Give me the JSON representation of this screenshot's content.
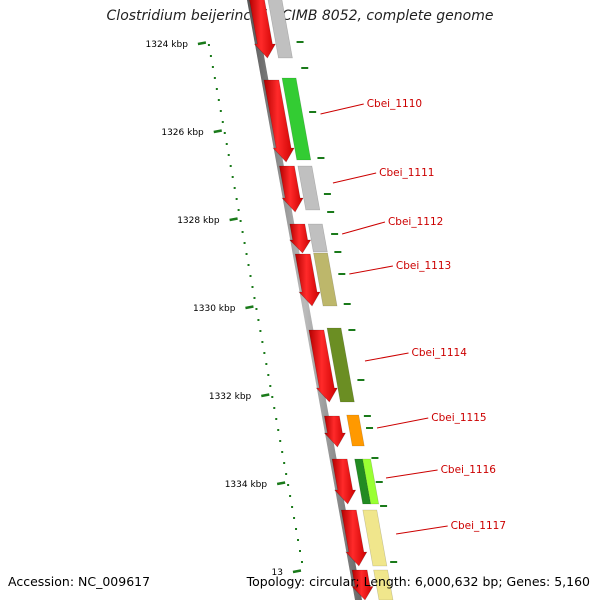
{
  "title": "Clostridium beijerinckii NCIMB 8052, complete genome",
  "footer": {
    "accession": "Accession: NC_009617",
    "topology": "Topology: circular; Length: 6,000,632 bp; Genes: 5,160"
  },
  "scale_ticks": [
    {
      "label": "1324 kbp"
    },
    {
      "label": "1326 kbp"
    },
    {
      "label": "1328 kbp"
    },
    {
      "label": "1330 kbp"
    },
    {
      "label": "1332 kbp"
    },
    {
      "label": "1334 kbp"
    },
    {
      "label": "13"
    }
  ],
  "genes": [
    {
      "id": "Cbei_1110",
      "cog_color": "#33cc33"
    },
    {
      "id": "Cbei_1111",
      "cog_color": "#c0c0c0"
    },
    {
      "id": "Cbei_1112",
      "cog_color": "#c0c0c0"
    },
    {
      "id": "Cbei_1113",
      "cog_color": "#bdb76b"
    },
    {
      "id": "Cbei_1114",
      "cog_color": "#6b8e23"
    },
    {
      "id": "Cbei_1115",
      "cog_color": "#ff9900"
    },
    {
      "id": "Cbei_1116",
      "cog_color": "#99ff33"
    },
    {
      "id": "Cbei_1117",
      "cog_color": "#f0e68c"
    }
  ],
  "colors": {
    "cds": "#ff0000",
    "scale": "#1a7a1a",
    "label": "#cc0000",
    "backbone": "#888888"
  }
}
